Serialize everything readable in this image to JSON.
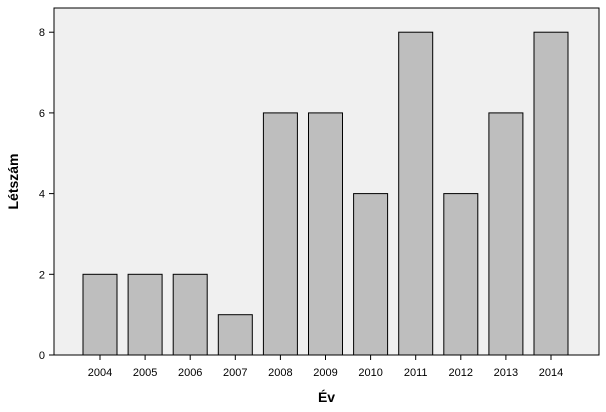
{
  "chart_data": {
    "type": "bar",
    "title": "",
    "xlabel": "Év",
    "ylabel": "Létszám",
    "categories": [
      "2004",
      "2005",
      "2006",
      "2007",
      "2008",
      "2009",
      "2010",
      "2011",
      "2012",
      "2013",
      "2014"
    ],
    "values": [
      2,
      2,
      2,
      1,
      6,
      6,
      4,
      8,
      4,
      6,
      8
    ],
    "ylim": [
      0,
      8.6
    ],
    "yticks": [
      0,
      2,
      4,
      6,
      8
    ],
    "grid": false,
    "colors": {
      "plot_background": "#f0f0f0",
      "bar_fill": "#bebebe",
      "bar_stroke": "#000000"
    }
  }
}
